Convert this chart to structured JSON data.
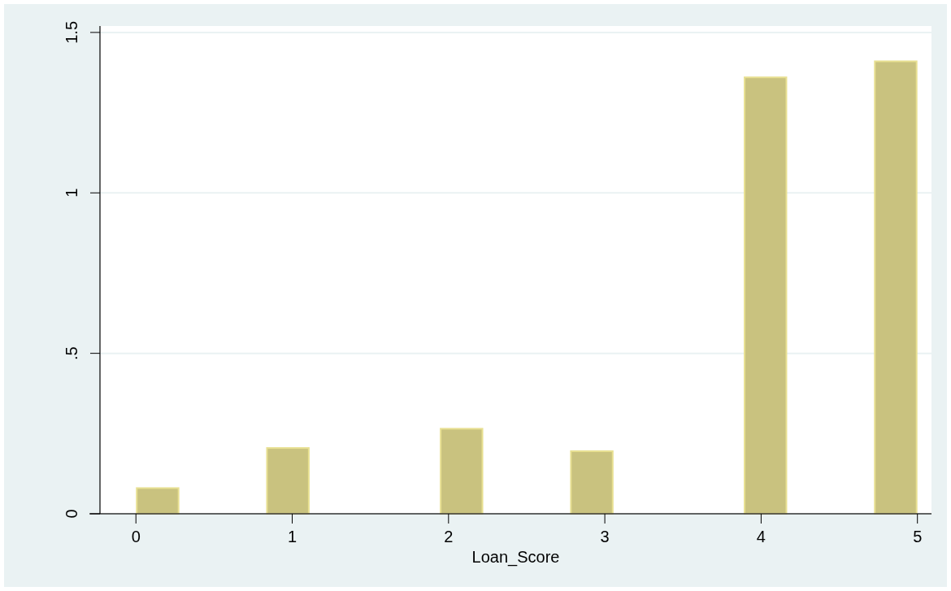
{
  "chart_data": {
    "type": "histogram",
    "xlabel": "Loan_Score",
    "color": "#c9c27f",
    "bins": [
      0,
      0.2778,
      0.5556,
      0.8333,
      1.1111,
      1.3889,
      1.6667,
      1.9444,
      2.2222,
      2.5,
      2.7778,
      3.0556,
      3.3333,
      3.6111,
      3.8889,
      4.1667,
      4.4444,
      4.7222,
      5
    ],
    "values": [
      0.08,
      0,
      0,
      0.205,
      0,
      0,
      0,
      0.265,
      0,
      0,
      0.195,
      0,
      0,
      0,
      1.36,
      0,
      0,
      1.41
    ],
    "xlim": [
      -0.23,
      5.09
    ],
    "xticks": [
      0,
      1,
      2,
      3,
      4,
      5
    ],
    "ylim": [
      0,
      1.52
    ],
    "yticks": [
      0,
      {
        "value": 0.5,
        "label": ".5"
      },
      1,
      1.5
    ],
    "grid": "y"
  }
}
